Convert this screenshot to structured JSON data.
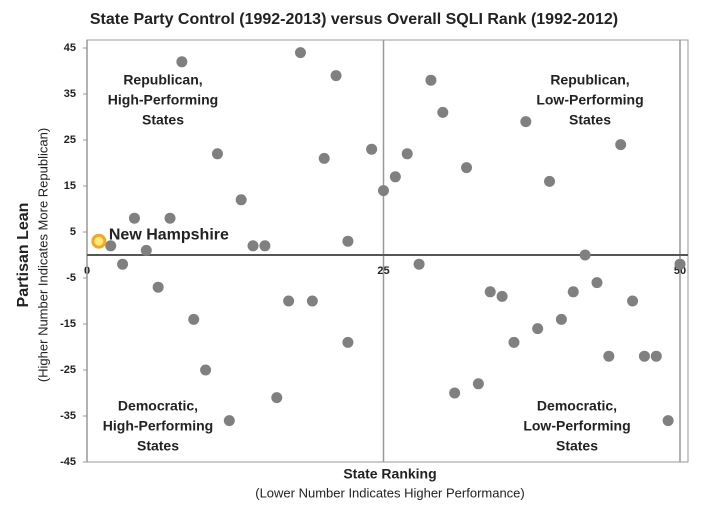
{
  "chart_data": {
    "type": "scatter",
    "title": "State Party Control (1992-2013) versus Overall SQLI Rank (1992-2012)",
    "x_label": "State Ranking",
    "x_sublabel": "(Lower Number Indicates Higher Performance)",
    "y_label": "Partisan Lean",
    "y_sublabel": "(Higher Number Indicates More Republican)",
    "xlim": [
      0,
      50
    ],
    "xticks": [
      0,
      25,
      50
    ],
    "ylim": [
      -45,
      45
    ],
    "yticks": [
      45,
      35,
      25,
      15,
      5,
      -5,
      -15,
      -25,
      -35,
      -45
    ],
    "color": "#808080",
    "x": [
      2,
      3,
      4,
      5,
      6,
      7,
      8,
      9,
      10,
      11,
      12,
      13,
      14,
      15,
      16,
      17,
      18,
      19,
      20,
      21,
      22,
      22,
      24,
      25,
      26,
      27,
      28,
      29,
      30,
      31,
      32,
      33,
      34,
      35,
      36,
      37,
      38,
      39,
      40,
      41,
      42,
      43,
      44,
      45,
      46,
      47,
      48,
      49,
      50
    ],
    "values": [
      2,
      -2,
      8,
      1,
      -7,
      8,
      42,
      -14,
      -25,
      22,
      -36,
      12,
      2,
      2,
      -31,
      -10,
      44,
      -10,
      21,
      39,
      3,
      -19,
      23,
      14,
      17,
      22,
      -2,
      38,
      31,
      -30,
      19,
      -28,
      -8,
      -9,
      -19,
      29,
      -16,
      16,
      -14,
      -8,
      0,
      -6,
      -22,
      24,
      -10,
      -22,
      -22,
      -36,
      -2
    ],
    "highlight": {
      "label": "New Hampshire",
      "x": 1,
      "y": 3,
      "color": "#f5a623"
    },
    "annotations": [
      {
        "lines": [
          "Republican,",
          "High-Performing",
          "States"
        ]
      },
      {
        "lines": [
          "Republican,",
          "Low-Performing",
          "States"
        ]
      },
      {
        "lines": [
          "Democratic,",
          "High-Performing",
          "States"
        ]
      },
      {
        "lines": [
          "Democratic,",
          "Low-Performing",
          "States"
        ]
      }
    ]
  }
}
